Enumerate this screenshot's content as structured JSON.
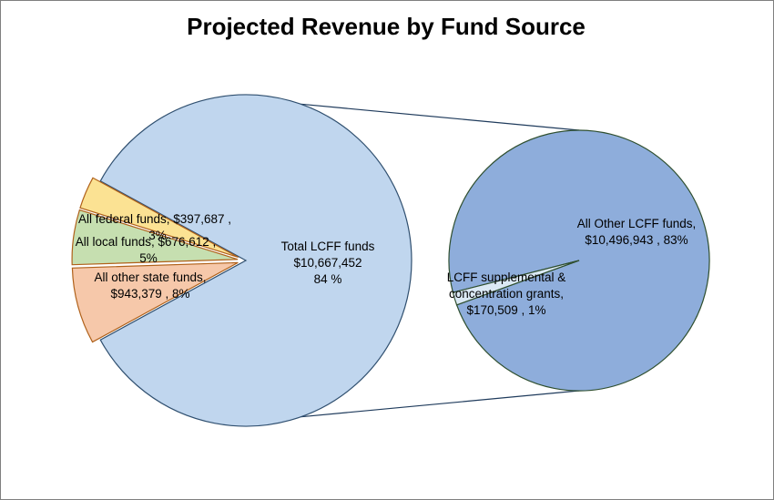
{
  "chart_data": {
    "type": "pie",
    "variant": "bar-of-pie",
    "title": "Projected Revenue by Fund Source",
    "main_pie": {
      "slices": [
        {
          "name": "Total LCFF funds",
          "value": 10667452,
          "value_label": "$10,667,452",
          "percent_label": "84 %",
          "color": "#c0d6ee",
          "exploded": false
        },
        {
          "name": "All other state funds",
          "value": 943379,
          "value_label": "$943,379",
          "percent_label": "8%",
          "color": "#f6c8aa",
          "exploded": true
        },
        {
          "name": "All local funds",
          "value": 676612,
          "value_label": "$676,612",
          "percent_label": "5%",
          "color": "#c6dfb0",
          "exploded": true
        },
        {
          "name": "All federal funds",
          "value": 397687,
          "value_label": "$397,687",
          "percent_label": "3%",
          "color": "#fbe293",
          "exploded": true
        }
      ]
    },
    "secondary_pie": {
      "slices": [
        {
          "name": "All Other LCFF funds",
          "value": 10496943,
          "value_label": "$10,496,943",
          "percent_label": "83%",
          "color": "#8eaddb"
        },
        {
          "name": "LCFF supplemental & concentration grants",
          "value": 170509,
          "value_label": "$170,509",
          "percent_label": "1%",
          "color": "#dbe9f5"
        }
      ]
    },
    "labels": {
      "main_total_line1": "Total LCFF funds",
      "main_total_line2": "$10,667,452",
      "main_total_line3": "84 %",
      "state_line1": "All other state funds,",
      "state_line2": "$943,379 , 8%",
      "local_line1": "All local funds, $676,612 ,",
      "local_line2": "5%",
      "federal_line1": "All federal funds, $397,687 ,",
      "federal_line2": "3%",
      "other_lcff_line1": "All Other LCFF funds,",
      "other_lcff_line2": "$10,496,943 , 83%",
      "supp_line1": "LCFF supplemental &",
      "supp_line2": "concentration grants,",
      "supp_line3": "$170,509 , 1%"
    },
    "legend": "none"
  }
}
